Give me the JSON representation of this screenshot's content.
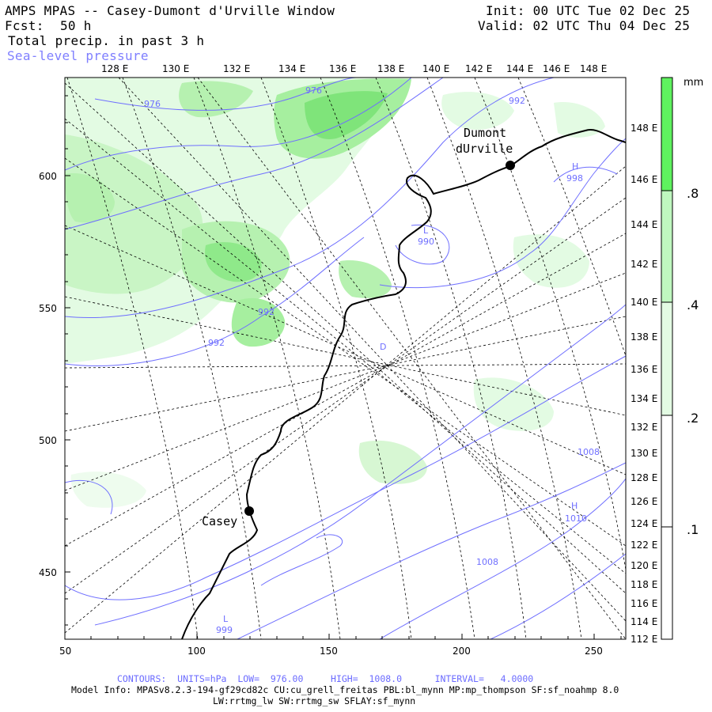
{
  "header": {
    "title": "AMPS MPAS -- Casey-Dumont d'Urville Window",
    "init": "Init: 00 UTC Tue 02 Dec 25",
    "fcst_label": "Fcst:",
    "fcst_value": "50 h",
    "valid": "Valid: 02 UTC Thu 04 Dec 25",
    "field": "Total precip. in past 3 h",
    "overlay": "Sea-level pressure"
  },
  "map": {
    "top_lon_labels": [
      "128 E",
      "130 E",
      "132 E",
      "134 E",
      "136 E",
      "138 E",
      "140 E",
      "142 E",
      "144 E",
      "146 E",
      "148 E"
    ],
    "right_lon_labels": [
      "148 E",
      "146 E",
      "144 E",
      "142 E",
      "140 E",
      "138 E",
      "136 E",
      "134 E",
      "132 E",
      "130 E",
      "128 E",
      "126 E",
      "124 E",
      "122 E",
      "120 E",
      "118 E",
      "116 E",
      "114 E",
      "112 E"
    ],
    "left_grid_labels": [
      "600",
      "550",
      "500",
      "450"
    ],
    "bottom_grid_labels": [
      "50",
      "100",
      "150",
      "200",
      "250"
    ],
    "places": [
      {
        "name_line1": "Dumont",
        "name_line2": "dUrville"
      },
      {
        "name_line1": "Casey",
        "name_line2": ""
      }
    ],
    "pressure_labels": [
      "976",
      "976",
      "992",
      "992",
      "992",
      "990",
      "998",
      "1008",
      "1010",
      "1008",
      "999"
    ],
    "centers": [
      "L",
      "H",
      "L",
      "H",
      "L",
      "D"
    ]
  },
  "colorbar": {
    "unit": "mm",
    "labels": [
      ".8",
      ".4",
      ".2",
      ".1"
    ],
    "colors": [
      "#5ff25f",
      "#bff7bf",
      "#e3fbe3",
      "#ffffff"
    ]
  },
  "footer": {
    "contours": "CONTOURS:  UNITS=hPa  LOW=  976.00     HIGH=  1008.0      INTERVAL=   4.0000",
    "model_info": "Model Info: MPASv8.2.3-194-gf29cd82c CU:cu_grell_freitas PBL:bl_mynn MP:mp_thompson SF:sf_noahmp 8.0",
    "model_info2": "LW:rrtmg_lw SW:rrtmg_sw SFLAY:sf_mynn"
  },
  "colors": {
    "contour": "#6f6fff",
    "precip_light": "#d9f7d9",
    "precip_mid": "#a6ef9f",
    "precip_heavy": "#6fe66f",
    "coast": "#000000"
  }
}
